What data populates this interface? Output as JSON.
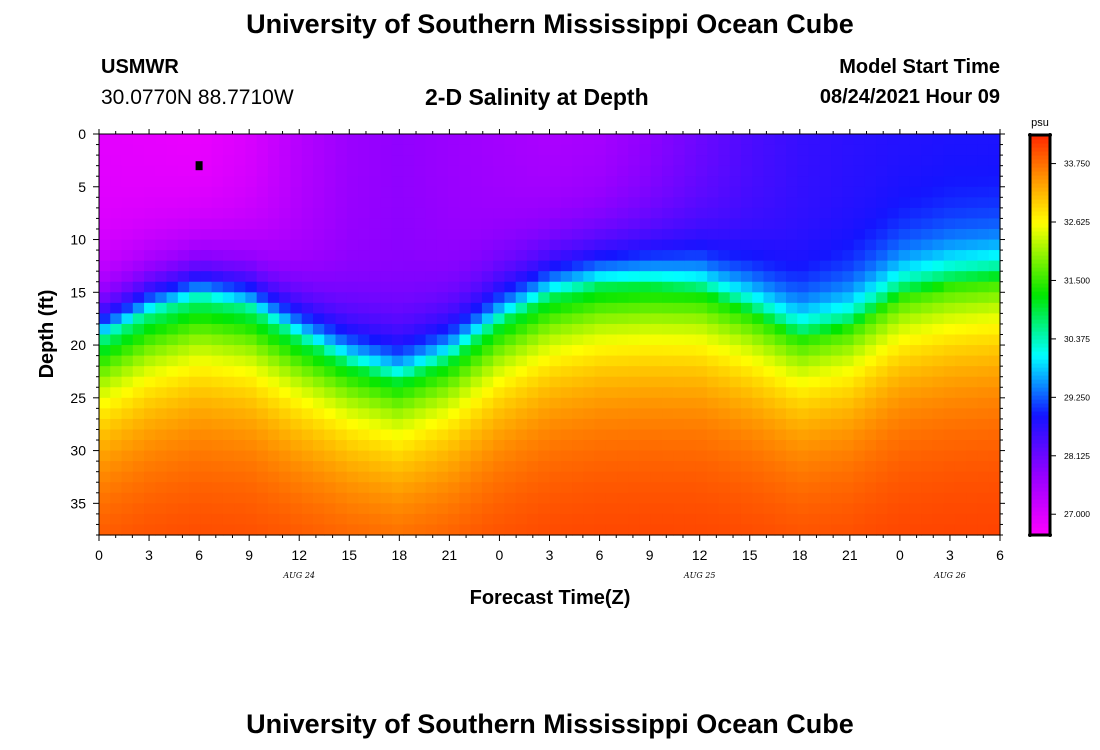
{
  "header": {
    "title": "University of Southern Mississippi Ocean Cube",
    "station": "USMWR",
    "coordinates": "30.0770N  88.7710W",
    "plot_title": "2-D Salinity at Depth",
    "model_start_label": "Model Start Time",
    "model_start_value": "08/24/2021 Hour 09"
  },
  "footer": {
    "title": "University of Southern Mississippi Ocean Cube"
  },
  "chart_data": {
    "type": "heatmap",
    "title": "2-D Salinity at Depth",
    "xlabel": "Forecast Time(Z)",
    "ylabel": "Depth (ft)",
    "x_ticks": [
      "0",
      "3",
      "6",
      "9",
      "12",
      "15",
      "18",
      "21",
      "0",
      "3",
      "6",
      "9",
      "12",
      "15",
      "18",
      "21",
      "0",
      "3",
      "6"
    ],
    "date_labels": [
      {
        "label": "AUG 24",
        "hour_offset": 12
      },
      {
        "label": "AUG 25",
        "hour_offset": 36
      },
      {
        "label": "AUG 26",
        "hour_offset": 51
      }
    ],
    "x_range_hours": [
      0,
      54
    ],
    "ylim": [
      0,
      38
    ],
    "y_ticks": [
      0,
      5,
      10,
      15,
      20,
      25,
      30,
      35
    ],
    "colorbar": {
      "unit": "psu",
      "range": [
        26.6,
        34.3
      ],
      "tick_values": [
        27.0,
        28.125,
        29.25,
        30.375,
        31.5,
        32.625,
        33.75
      ],
      "tick_labels": [
        "27.000",
        "28.125",
        "29.250",
        "30.375",
        "31.500",
        "32.625",
        "33.750"
      ]
    },
    "marker": {
      "hour": 6,
      "depth_ft": 3
    },
    "halocline_depth_ft": [
      {
        "hour": 0,
        "depth": 19.5
      },
      {
        "hour": 3,
        "depth": 17.0
      },
      {
        "hour": 6,
        "depth": 15.5
      },
      {
        "hour": 9,
        "depth": 16.5
      },
      {
        "hour": 12,
        "depth": 19.5
      },
      {
        "hour": 15,
        "depth": 22.0
      },
      {
        "hour": 18,
        "depth": 23.5
      },
      {
        "hour": 21,
        "depth": 21.5
      },
      {
        "hour": 24,
        "depth": 18.0
      },
      {
        "hour": 27,
        "depth": 15.5
      },
      {
        "hour": 30,
        "depth": 14.5
      },
      {
        "hour": 33,
        "depth": 14.5
      },
      {
        "hour": 36,
        "depth": 15.0
      },
      {
        "hour": 39,
        "depth": 17.0
      },
      {
        "hour": 42,
        "depth": 19.5
      },
      {
        "hour": 45,
        "depth": 18.5
      },
      {
        "hour": 48,
        "depth": 15.5
      },
      {
        "hour": 51,
        "depth": 14.5
      },
      {
        "hour": 54,
        "depth": 14.0
      }
    ],
    "surface_salinity_psu": [
      {
        "hour": 0,
        "value": 26.9
      },
      {
        "hour": 3,
        "value": 26.85
      },
      {
        "hour": 6,
        "value": 26.8
      },
      {
        "hour": 9,
        "value": 27.0
      },
      {
        "hour": 12,
        "value": 27.4
      },
      {
        "hour": 15,
        "value": 27.7
      },
      {
        "hour": 18,
        "value": 27.8
      },
      {
        "hour": 21,
        "value": 27.7
      },
      {
        "hour": 24,
        "value": 27.6
      },
      {
        "hour": 27,
        "value": 27.5
      },
      {
        "hour": 30,
        "value": 27.55
      },
      {
        "hour": 33,
        "value": 27.8
      },
      {
        "hour": 36,
        "value": 28.1
      },
      {
        "hour": 39,
        "value": 28.4
      },
      {
        "hour": 42,
        "value": 28.6
      },
      {
        "hour": 45,
        "value": 28.7
      },
      {
        "hour": 48,
        "value": 28.75
      },
      {
        "hour": 51,
        "value": 28.8
      },
      {
        "hour": 54,
        "value": 28.8
      }
    ],
    "bottom_salinity_psu": 34.2
  }
}
